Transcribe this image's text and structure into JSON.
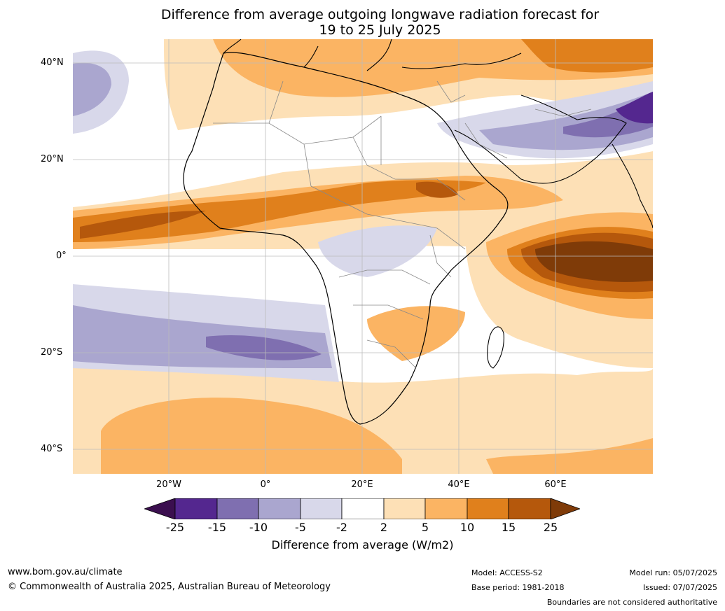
{
  "title_line1": "Difference from average outgoing longwave radiation forecast for",
  "title_line2": "19 to 25 July 2025",
  "map": {
    "lat_labels": [
      "40°N",
      "20°N",
      "0°",
      "20°S",
      "40°S"
    ],
    "lon_labels": [
      "20°W",
      "0°",
      "20°E",
      "40°E",
      "60°E"
    ],
    "colors": {
      "lt25": "#3b0f4f",
      "n25_15": "#54278f",
      "n15_10": "#7f6fb0",
      "n10_5": "#aaa6cf",
      "n5_2": "#d8d8ea",
      "n2_2": "#ffffff",
      "p2_5": "#fde0b6",
      "p5_10": "#fbb463",
      "p10_15": "#e0801c",
      "p15_25": "#b5580c",
      "gt25": "#7f3b08"
    }
  },
  "colorbar": {
    "ticks": [
      "-25",
      "-15",
      "-10",
      "-5",
      "-2",
      "2",
      "5",
      "10",
      "15",
      "25"
    ],
    "label": "Difference from average (W/m2)"
  },
  "footer": {
    "website": "www.bom.gov.au/climate",
    "copyright": "© Commonwealth of Australia 2025, Australian Bureau of Meteorology",
    "model": "Model: ACCESS-S2",
    "base_period": "Base period: 1981-2018",
    "model_run": "Model run: 05/07/2025",
    "issued": "Issued: 07/07/2025",
    "disclaimer": "Boundaries are not considered authoritative"
  }
}
